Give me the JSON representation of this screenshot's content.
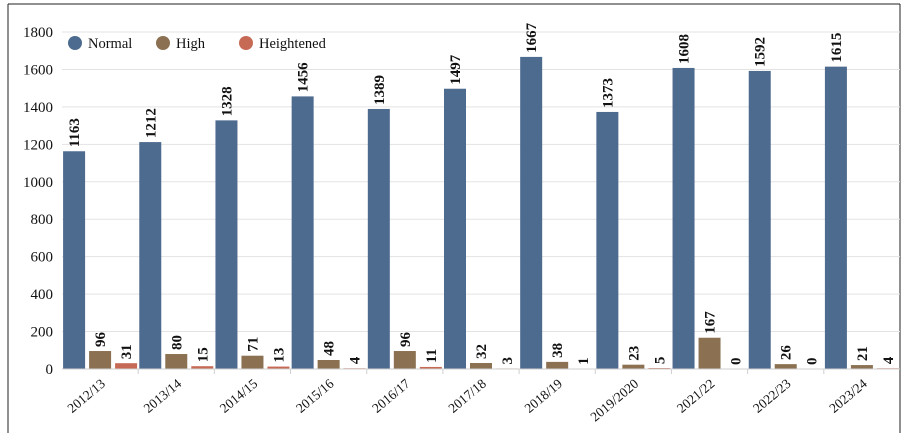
{
  "chart_data": {
    "type": "bar",
    "title": "",
    "xlabel": "",
    "ylabel": "",
    "ylim": [
      0,
      1800
    ],
    "yticks": [
      0,
      200,
      400,
      600,
      800,
      1000,
      1200,
      1400,
      1600,
      1800
    ],
    "grid": true,
    "legend_position": "top-left",
    "categories": [
      "2012/13",
      "2013/14",
      "2014/15",
      "2015/16",
      "2016/17",
      "2017/18",
      "2018/19",
      "2019/2020",
      "2021/22",
      "2022/23",
      "2023/24"
    ],
    "series": [
      {
        "name": "Normal",
        "color": "#4d6a8f",
        "values": [
          1163,
          1212,
          1328,
          1456,
          1389,
          1497,
          1667,
          1373,
          1608,
          1592,
          1615
        ]
      },
      {
        "name": "High",
        "color": "#8b7152",
        "values": [
          96,
          80,
          71,
          48,
          96,
          32,
          38,
          23,
          167,
          26,
          21
        ]
      },
      {
        "name": "Heightened",
        "color": "#c66a55",
        "values": [
          31,
          15,
          13,
          4,
          11,
          3,
          1,
          5,
          0,
          0,
          4
        ]
      }
    ]
  }
}
